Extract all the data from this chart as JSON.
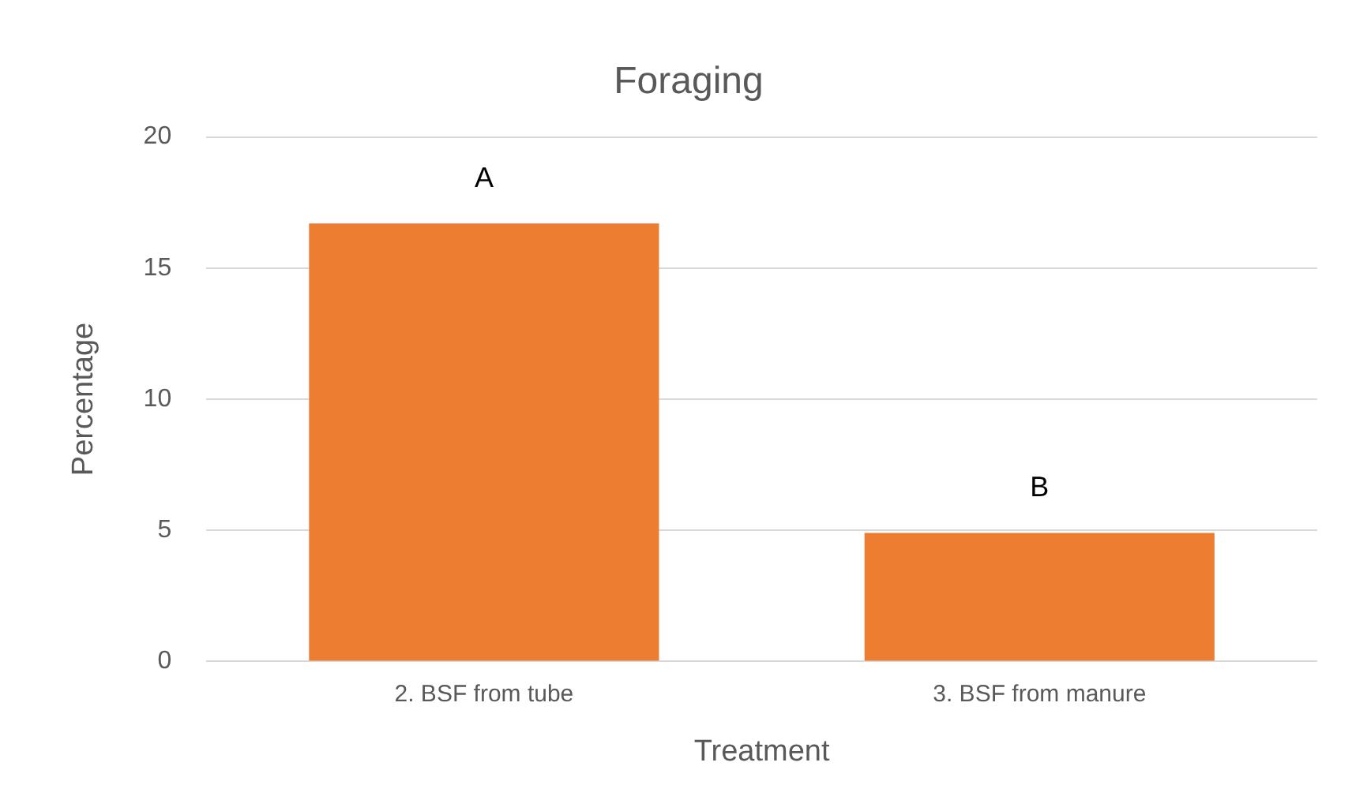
{
  "chart_data": {
    "type": "bar",
    "title": "Foraging",
    "xlabel": "Treatment",
    "ylabel": "Percentage",
    "categories": [
      "2. BSF from tube",
      "3. BSF from manure"
    ],
    "values": [
      16.7,
      4.9
    ],
    "color": "#ed7d31",
    "ylim": [
      0,
      20
    ],
    "yticks": [
      0,
      5,
      10,
      15,
      20
    ],
    "grid": "y",
    "legend": false,
    "annotations": [
      "A",
      "B"
    ]
  }
}
